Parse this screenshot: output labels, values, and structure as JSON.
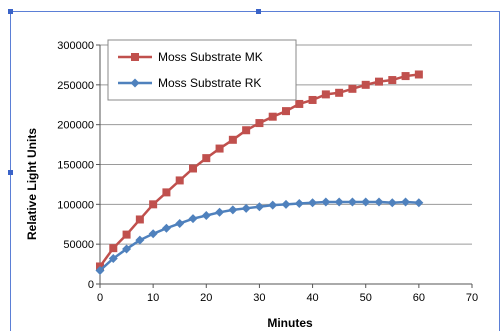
{
  "chart_data": {
    "type": "line",
    "title": "",
    "xlabel": "Minutes",
    "ylabel": "Relative Light Units",
    "xlim": [
      0,
      70
    ],
    "ylim": [
      0,
      300000
    ],
    "x_ticks": [
      "0",
      "10",
      "20",
      "30",
      "40",
      "50",
      "60",
      "70"
    ],
    "y_ticks": [
      "0",
      "50000",
      "100000",
      "150000",
      "200000",
      "250000",
      "300000"
    ],
    "grid": "horizontal",
    "legend_position": "top-left",
    "series": [
      {
        "name": "Moss Substrate MK",
        "color": "#c0504d",
        "marker": "square",
        "x": [
          0,
          2.5,
          5,
          7.5,
          10,
          12.5,
          15,
          17.5,
          20,
          22.5,
          25,
          27.5,
          30,
          32.5,
          35,
          37.5,
          40,
          42.5,
          45,
          47.5,
          50,
          52.5,
          55,
          57.5,
          60
        ],
        "values": [
          22000,
          45000,
          62000,
          81000,
          100000,
          115000,
          130000,
          145000,
          158000,
          170000,
          181000,
          193000,
          202000,
          210000,
          217000,
          226000,
          231000,
          238000,
          240000,
          245000,
          250000,
          254000,
          256000,
          261000,
          263000
        ]
      },
      {
        "name": "Moss Substrate RK",
        "color": "#4f81bd",
        "marker": "diamond",
        "x": [
          0,
          2.5,
          5,
          7.5,
          10,
          12.5,
          15,
          17.5,
          20,
          22.5,
          25,
          27.5,
          30,
          32.5,
          35,
          37.5,
          40,
          42.5,
          45,
          47.5,
          50,
          52.5,
          55,
          57.5,
          60
        ],
        "values": [
          17000,
          32000,
          44000,
          55000,
          63000,
          70000,
          76000,
          82000,
          86000,
          90000,
          93000,
          95000,
          97000,
          99000,
          100000,
          101000,
          102000,
          103000,
          103000,
          103000,
          103000,
          103000,
          102000,
          103000,
          102000
        ]
      }
    ]
  }
}
